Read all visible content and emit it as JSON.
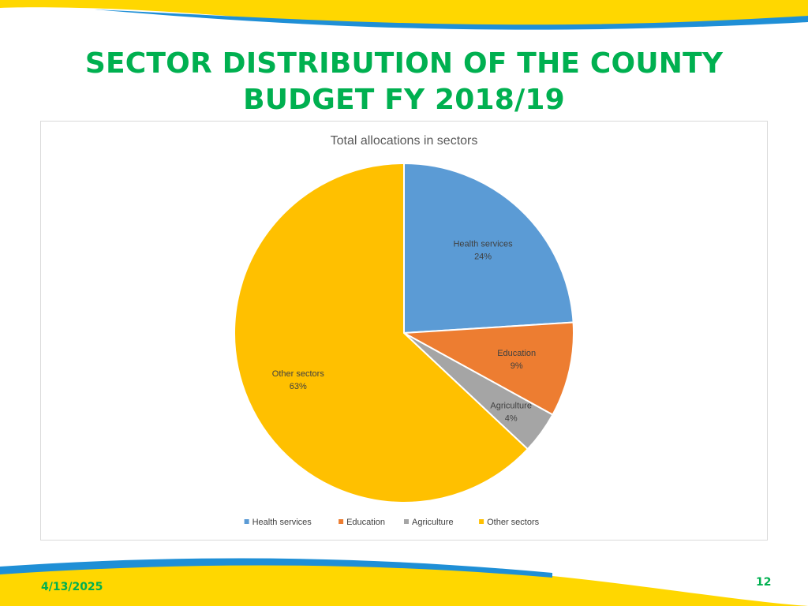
{
  "slide": {
    "title_lines": [
      "SECTOR DISTRIBUTION OF THE COUNTY",
      "BUDGET FY 2018/19"
    ],
    "date": "4/13/2025",
    "number": "12"
  },
  "theme": {
    "title_color": "#00b050",
    "band_yellow": "#ffd700",
    "band_blue": "#1f8fd6"
  },
  "chart_data": {
    "type": "pie",
    "title": "Total allocations in sectors",
    "categories": [
      "Health services",
      "Education",
      "Agriculture",
      "Other sectors"
    ],
    "values": [
      24,
      9,
      4,
      63
    ],
    "value_labels": [
      "24%",
      "9%",
      "4%",
      "63%"
    ],
    "colors": [
      "#5b9bd5",
      "#ed7d31",
      "#a5a5a5",
      "#ffc000"
    ],
    "legend_position": "bottom"
  }
}
